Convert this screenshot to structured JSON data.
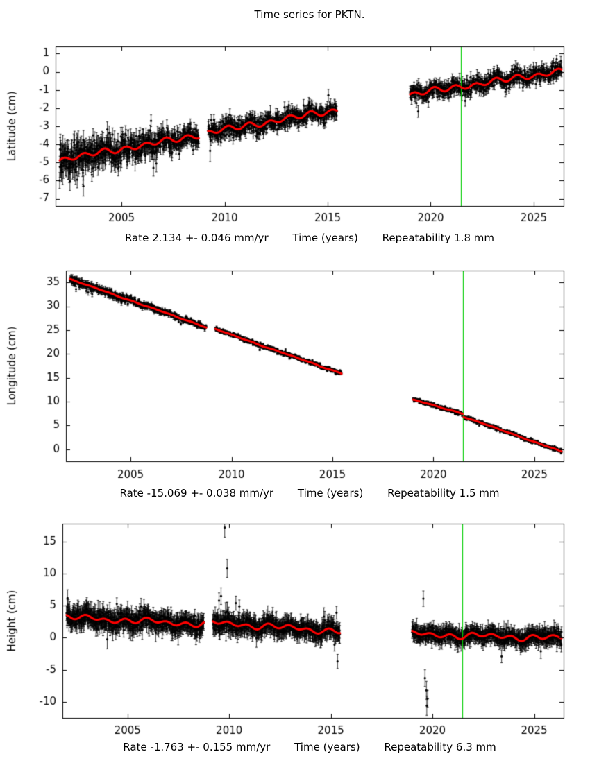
{
  "title": "Time series for PKTN.",
  "colors": {
    "points": "#000000",
    "trend": "#ff0000",
    "event_line": "#00cc00",
    "background": "#ffffff",
    "axis": "#000000"
  },
  "chart_data": [
    {
      "type": "scatter",
      "name": "latitude",
      "ylabel": "Latitude (cm)",
      "xlabel": "Time (years)",
      "caption_rate": "Rate 2.134 +- 0.046 mm/yr",
      "repeatability": "Repeatability 1.8 mm",
      "xlim": [
        2001.8,
        2026.45
      ],
      "ylim": [
        -7.4,
        1.4
      ],
      "xticks": [
        2005,
        2010,
        2015,
        2020,
        2025
      ],
      "yticks": [
        1,
        0,
        -1,
        -2,
        -3,
        -4,
        -5,
        -6,
        -7
      ],
      "event_line_x": 2021.45,
      "seasonal_amplitude": 0.13,
      "slow_wiggle_amplitude": 0.05,
      "noise_sigma": 0.22,
      "error_bar": 0.26,
      "segments": [
        {
          "t0": 2002.0,
          "t1": 2008.75,
          "v0": -4.85,
          "v1": -3.5,
          "noise_start": 2.1,
          "noise_end": 1.1
        },
        {
          "t0": 2009.2,
          "t1": 2015.45,
          "v0": -3.35,
          "v1": -2.1,
          "noise_start": 1.1,
          "noise_end": 1.0
        },
        {
          "t0": 2019.0,
          "t1": 2026.35,
          "v0": -1.25,
          "v1": 0.05,
          "noise_start": 0.95,
          "noise_end": 0.9
        }
      ],
      "outliers": [
        [
          2002.5,
          -6.05,
          0.5
        ],
        [
          2002.85,
          -5.95,
          0.45
        ],
        [
          2003.15,
          -6.3,
          0.55
        ],
        [
          2006.55,
          -5.3,
          0.45
        ],
        [
          2009.3,
          -4.35,
          0.6
        ]
      ]
    },
    {
      "type": "scatter",
      "name": "longitude",
      "ylabel": "Longitude (cm)",
      "xlabel": "Time (years)",
      "caption_rate": "Rate -15.069 +- 0.038 mm/yr",
      "repeatability": "Repeatability 1.5 mm",
      "xlim": [
        2001.8,
        2026.45
      ],
      "ylim": [
        -2.5,
        37.5
      ],
      "xticks": [
        2005,
        2010,
        2015,
        2020,
        2025
      ],
      "yticks": [
        35,
        30,
        25,
        20,
        15,
        10,
        5,
        0
      ],
      "event_line_x": 2021.45,
      "seasonal_amplitude": 0.05,
      "slow_wiggle_amplitude": 0.04,
      "noise_sigma": 0.2,
      "error_bar": 0.25,
      "segments": [
        {
          "t0": 2002.0,
          "t1": 2008.75,
          "v0": 35.7,
          "v1": 25.6,
          "noise_start": 2.0,
          "noise_end": 1.1
        },
        {
          "t0": 2009.2,
          "t1": 2015.45,
          "v0": 25.2,
          "v1": 15.9,
          "noise_start": 1.0,
          "noise_end": 0.9
        },
        {
          "t0": 2019.0,
          "t1": 2021.45,
          "v0": 10.4,
          "v1": 7.5,
          "noise_start": 0.9,
          "noise_end": 0.9
        },
        {
          "t0": 2021.5,
          "t1": 2026.35,
          "v0": 6.85,
          "v1": -0.45,
          "noise_start": 0.9,
          "noise_end": 0.85
        }
      ],
      "outliers": [
        [
          2002.3,
          33.6,
          0.5
        ],
        [
          2002.9,
          32.9,
          0.6
        ],
        [
          2003.1,
          32.55,
          0.55
        ],
        [
          2004.55,
          30.7,
          0.5
        ]
      ]
    },
    {
      "type": "scatter",
      "name": "height",
      "ylabel": "Height (cm)",
      "xlabel": "Time (years)",
      "caption_rate": "Rate -1.763 +- 0.155 mm/yr",
      "repeatability": "Repeatability 6.3 mm",
      "xlim": [
        2001.8,
        2026.45
      ],
      "ylim": [
        -12.5,
        17.8
      ],
      "xticks": [
        2005,
        2010,
        2015,
        2020,
        2025
      ],
      "yticks": [
        15,
        10,
        5,
        0,
        -5,
        -10
      ],
      "event_line_x": 2021.45,
      "seasonal_amplitude": 0.3,
      "slow_wiggle_amplitude": 0.22,
      "noise_sigma": 0.55,
      "error_bar": 1.15,
      "segments": [
        {
          "t0": 2002.0,
          "t1": 2008.75,
          "v0": 3.2,
          "v1": 2.1,
          "noise_start": 1.15,
          "noise_end": 1.0
        },
        {
          "t0": 2009.2,
          "t1": 2015.45,
          "v0": 2.35,
          "v1": 1.0,
          "noise_start": 1.05,
          "noise_end": 0.95
        },
        {
          "t0": 2019.0,
          "t1": 2026.35,
          "v0": 0.55,
          "v1": -0.05,
          "noise_start": 0.85,
          "noise_end": 0.85
        }
      ],
      "outliers": [
        [
          2002.05,
          6.2,
          1.3
        ],
        [
          2009.5,
          5.8,
          1.2
        ],
        [
          2009.6,
          6.5,
          1.3
        ],
        [
          2009.78,
          17.2,
          1.5
        ],
        [
          2009.9,
          10.8,
          1.4
        ],
        [
          2010.33,
          5.4,
          1.1
        ],
        [
          2010.5,
          4.9,
          1.0
        ],
        [
          2015.28,
          3.9,
          1.0
        ],
        [
          2015.33,
          -3.7,
          1.1
        ],
        [
          2019.55,
          6.1,
          1.2
        ],
        [
          2019.63,
          -6.3,
          1.3
        ],
        [
          2019.7,
          -8.2,
          1.4
        ],
        [
          2019.72,
          -10.6,
          1.5
        ],
        [
          2019.76,
          -9.5,
          1.3
        ],
        [
          2023.4,
          -2.9,
          1.0
        ]
      ]
    }
  ]
}
